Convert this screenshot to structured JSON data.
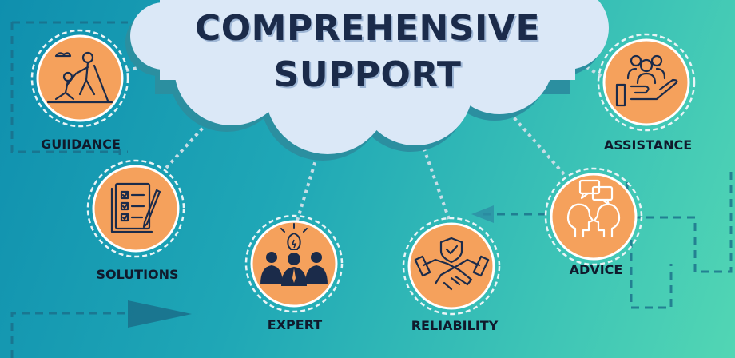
{
  "title_line1": "COMPREHENSIVE",
  "title_line2": "SUPPORT",
  "nodes": [
    {
      "label": "GUIIDANCE",
      "icon": "climbing-help-icon"
    },
    {
      "label": "SOLUTIONS",
      "icon": "checklist-pencil-icon"
    },
    {
      "label": "EXPERT",
      "icon": "experts-lightbulb-icon"
    },
    {
      "label": "RELIABILITY",
      "icon": "handshake-shield-icon"
    },
    {
      "label": "ADVICE",
      "icon": "two-heads-speech-icon"
    },
    {
      "label": "ASSISTANCE",
      "icon": "hand-with-people-icon"
    }
  ],
  "colors": {
    "circle_fill": "#f5a15c",
    "icon_stroke": "#1b2b4a",
    "cloud_fill": "#dbe8f7",
    "cloud_shadow": "#2b8fa0",
    "connector": "#c8dde6"
  }
}
